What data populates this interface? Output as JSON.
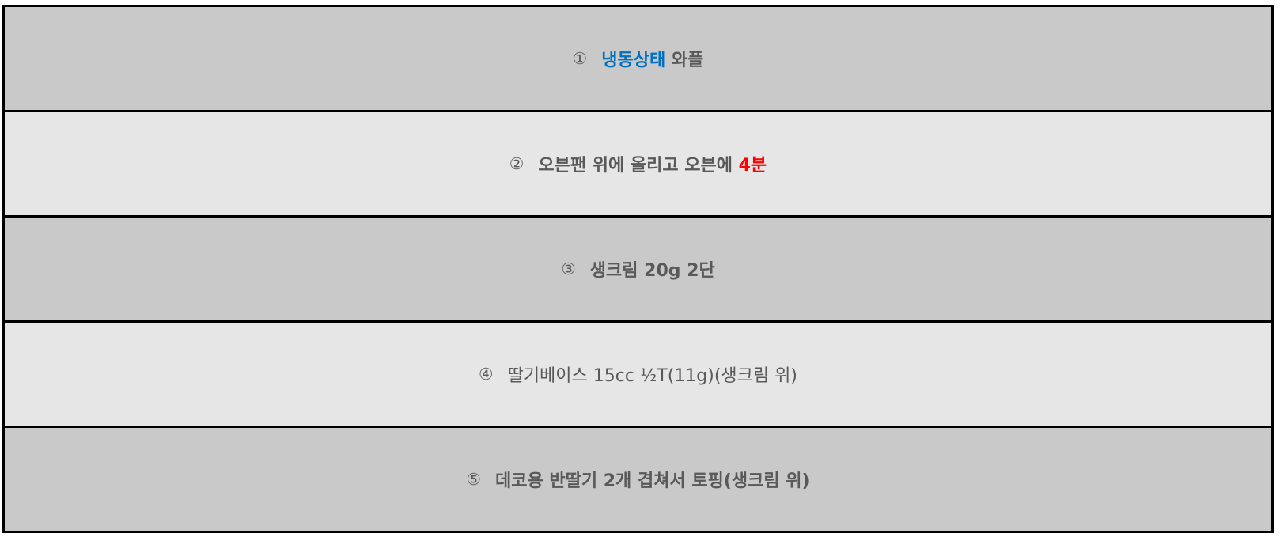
{
  "colors": {
    "text_default": "#595959",
    "highlight_blue": "#0070c0",
    "highlight_red": "#ff0000",
    "row_dark": "#c9c9c9",
    "row_light": "#e6e6e6",
    "border": "#000000"
  },
  "steps": [
    {
      "number": "①",
      "segments": [
        {
          "text": "냉동상태",
          "color": "#0070c0"
        },
        {
          "text": " 와플",
          "color": "#595959"
        }
      ]
    },
    {
      "number": "②",
      "segments": [
        {
          "text": "오븐팬 위에 올리고 오븐에 ",
          "color": "#595959"
        },
        {
          "text": "4분",
          "color": "#ff0000"
        }
      ]
    },
    {
      "number": "③",
      "segments": [
        {
          "text": "생크림 20g 2단",
          "color": "#595959"
        }
      ]
    },
    {
      "number": "④",
      "segments": [
        {
          "text": "딸기베이스 15cc ½T(11g)(생크림 위)",
          "color": "#595959"
        }
      ]
    },
    {
      "number": "⑤",
      "segments": [
        {
          "text": "데코용 반딸기 2개 겹쳐서 토핑(생크림 위)",
          "color": "#595959"
        }
      ]
    }
  ]
}
